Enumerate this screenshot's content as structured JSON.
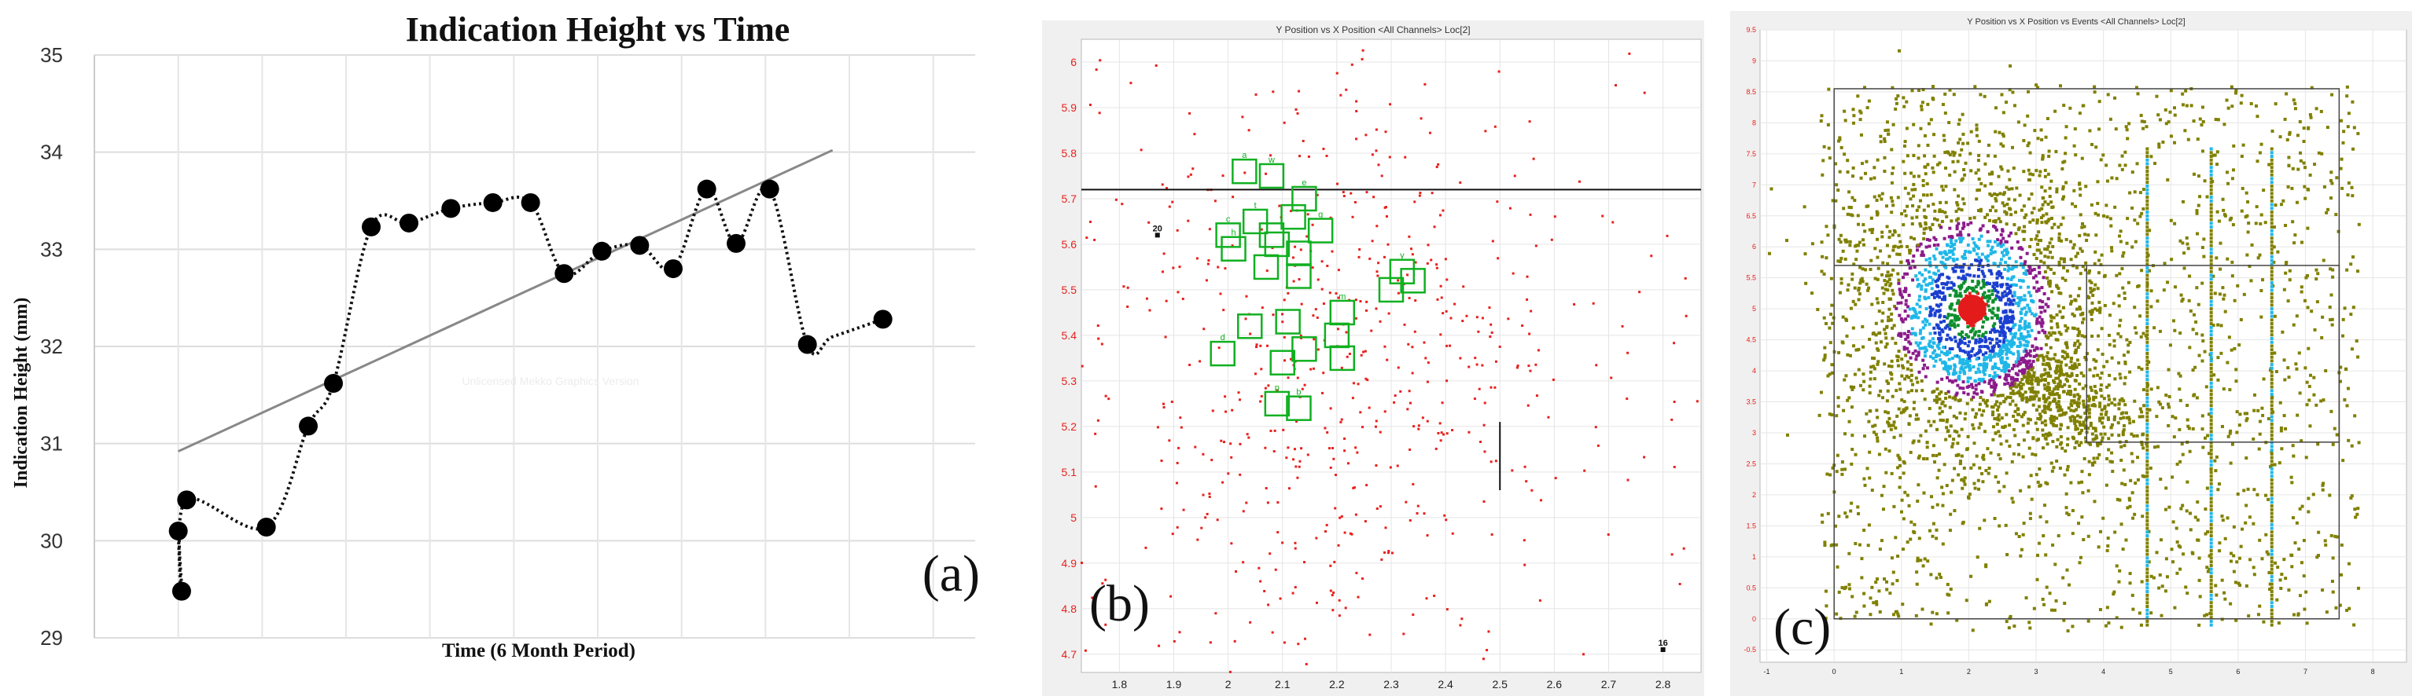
{
  "chart_data": [
    {
      "panel_label": "(a)",
      "type": "line",
      "title": "Indication Height vs Time",
      "xlabel": "Time (6 Month Period)",
      "ylabel": "Indication Height (mm)",
      "ylim": [
        29,
        35
      ],
      "yticks": [
        "29",
        "30",
        "31",
        "32",
        "33",
        "34",
        "35"
      ],
      "grid": true,
      "watermark": "Unlicensed Mekko Graphics Version",
      "series": [
        {
          "x": [
            1.0,
            1.04,
            1.1,
            2.05,
            2.55,
            2.85,
            3.3,
            3.75,
            4.25,
            4.75,
            5.2,
            5.6,
            6.05,
            6.5,
            6.9,
            7.3,
            7.65,
            8.05,
            8.5,
            8.8,
            9.4
          ],
          "y": [
            30.1,
            29.48,
            30.42,
            30.14,
            31.18,
            31.62,
            33.23,
            33.27,
            33.42,
            33.48,
            33.48,
            32.75,
            32.98,
            33.04,
            32.8,
            33.62,
            33.06,
            33.62,
            32.02,
            32.1,
            32.28
          ],
          "markers": [
            true,
            true,
            true,
            true,
            true,
            true,
            true,
            true,
            true,
            true,
            true,
            true,
            true,
            true,
            true,
            true,
            true,
            true,
            true,
            false,
            true
          ],
          "style": "dotted"
        },
        {
          "trendline": true,
          "x": [
            1.0,
            8.8
          ],
          "y": [
            30.92,
            34.02
          ],
          "color": "#888888"
        }
      ]
    },
    {
      "panel_label": "(b)",
      "type": "scatter",
      "title": "Y Position vs X Position <All Channels> Loc[2]",
      "xlim": [
        1.73,
        2.87
      ],
      "ylim": [
        4.66,
        6.05
      ],
      "xticks": [
        "1.8",
        "1.9",
        "2",
        "2.1",
        "2.2",
        "2.3",
        "2.4",
        "2.5",
        "2.6",
        "2.7",
        "2.8"
      ],
      "yticks": [
        "4.7",
        "4.8",
        "4.9",
        "5",
        "5.1",
        "5.2",
        "5.3",
        "5.4",
        "5.5",
        "5.6",
        "5.7",
        "5.8",
        "5.9",
        "6"
      ],
      "hline_y": 5.72,
      "vline": {
        "x": 2.5,
        "y": [
          5.06,
          5.21
        ]
      },
      "marked_points": [
        {
          "label": "20",
          "x": 1.87,
          "y": 5.62
        },
        {
          "label": "16",
          "x": 2.8,
          "y": 4.71
        }
      ],
      "boxes": [
        {
          "label": "a",
          "x": 2.03,
          "y": 5.76
        },
        {
          "label": "w",
          "x": 2.08,
          "y": 5.75
        },
        {
          "label": "e",
          "x": 2.14,
          "y": 5.7
        },
        {
          "label": "",
          "x": 2.12,
          "y": 5.66
        },
        {
          "label": "t",
          "x": 2.05,
          "y": 5.65
        },
        {
          "label": "c",
          "x": 2.0,
          "y": 5.62
        },
        {
          "label": "",
          "x": 2.08,
          "y": 5.62
        },
        {
          "label": "g",
          "x": 2.17,
          "y": 5.63
        },
        {
          "label": "h",
          "x": 2.01,
          "y": 5.59
        },
        {
          "label": "",
          "x": 2.09,
          "y": 5.6
        },
        {
          "label": "",
          "x": 2.13,
          "y": 5.58
        },
        {
          "label": "",
          "x": 2.07,
          "y": 5.55
        },
        {
          "label": "",
          "x": 2.13,
          "y": 5.53
        },
        {
          "label": "y",
          "x": 2.32,
          "y": 5.54
        },
        {
          "label": "",
          "x": 2.34,
          "y": 5.52
        },
        {
          "label": "",
          "x": 2.3,
          "y": 5.5
        },
        {
          "label": "m",
          "x": 2.21,
          "y": 5.45
        },
        {
          "label": "",
          "x": 2.11,
          "y": 5.43
        },
        {
          "label": "",
          "x": 2.04,
          "y": 5.42
        },
        {
          "label": "",
          "x": 2.2,
          "y": 5.4
        },
        {
          "label": "d",
          "x": 1.99,
          "y": 5.36
        },
        {
          "label": "",
          "x": 2.14,
          "y": 5.37
        },
        {
          "label": "",
          "x": 2.1,
          "y": 5.34
        },
        {
          "label": "",
          "x": 2.21,
          "y": 5.35
        },
        {
          "label": "p",
          "x": 2.09,
          "y": 5.25
        },
        {
          "label": "b",
          "x": 2.13,
          "y": 5.24
        }
      ],
      "point_color": "#e8201c",
      "box_color": "#10b020",
      "point_count_approx": 600
    },
    {
      "panel_label": "(c)",
      "type": "scatter",
      "title": "Y Position vs X Position vs Events <All Channels> Loc[2]",
      "xlim": [
        -1.1,
        8.5
      ],
      "ylim": [
        -0.7,
        9.5
      ],
      "xticks": [
        "-1",
        "0",
        "1",
        "2",
        "3",
        "4",
        "5",
        "6",
        "7",
        "8"
      ],
      "yticks": [
        "-0.5",
        "0",
        "0.5",
        "1",
        "1.5",
        "2",
        "2.5",
        "3",
        "3.5",
        "4",
        "4.5",
        "5",
        "5.5",
        "6",
        "6.5",
        "7",
        "7.5",
        "8",
        "8.5",
        "9",
        "9.5"
      ],
      "outer_rect": {
        "x": [
          0,
          7.5
        ],
        "y": [
          0,
          8.55
        ]
      },
      "inner_rect": {
        "x": [
          3.75,
          7.5
        ],
        "y": [
          2.85,
          5.7
        ]
      },
      "hot_center": {
        "x": 2.05,
        "y": 5.0
      },
      "density_colors": [
        "#808000",
        "#8b1a8b",
        "#1fb7e8",
        "#1a3fd0",
        "#0e8f2e",
        "#e41b1b"
      ],
      "vertical_sensor_lines_x": [
        4.65,
        5.6,
        6.5
      ],
      "point_count_approx": 4000
    }
  ]
}
